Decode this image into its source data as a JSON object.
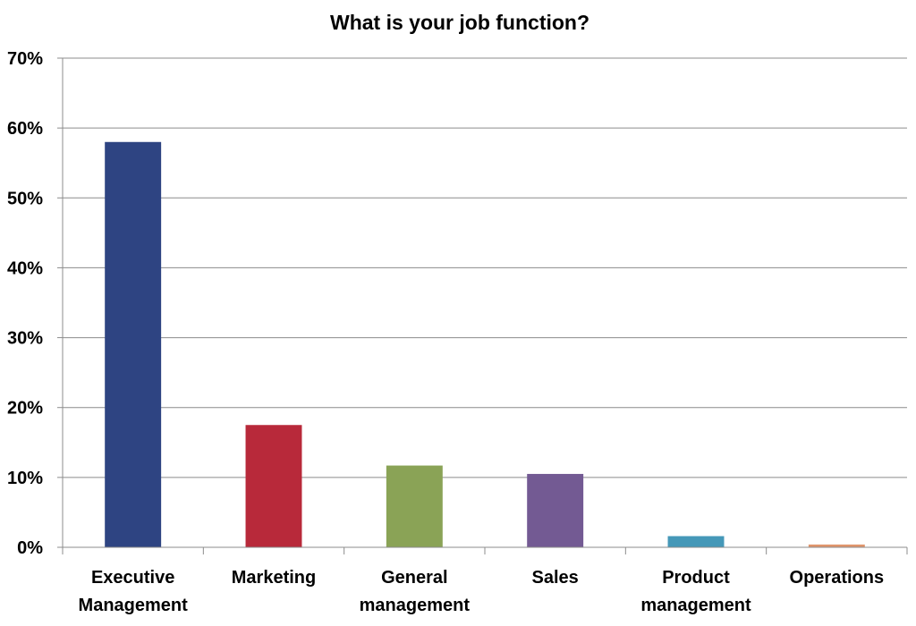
{
  "chart_data": {
    "type": "bar",
    "title": "What is your job function?",
    "categories": [
      [
        "Executive",
        "Management"
      ],
      [
        "Marketing"
      ],
      [
        "General",
        "management"
      ],
      [
        "Sales"
      ],
      [
        "Product",
        "management"
      ],
      [
        "Operations"
      ]
    ],
    "values": [
      58,
      17.5,
      11.7,
      10.5,
      1.6,
      0.4
    ],
    "colors": [
      "#2e4482",
      "#b8293a",
      "#8aa356",
      "#735a93",
      "#4598b8",
      "#e0956c"
    ],
    "ylim": [
      0,
      70
    ],
    "yticks": [
      0,
      10,
      20,
      30,
      40,
      50,
      60,
      70
    ],
    "ytick_labels": [
      "0%",
      "10%",
      "20%",
      "30%",
      "40%",
      "50%",
      "60%",
      "70%"
    ],
    "xlabel": "",
    "ylabel": "",
    "grid": true,
    "legend": "none"
  }
}
